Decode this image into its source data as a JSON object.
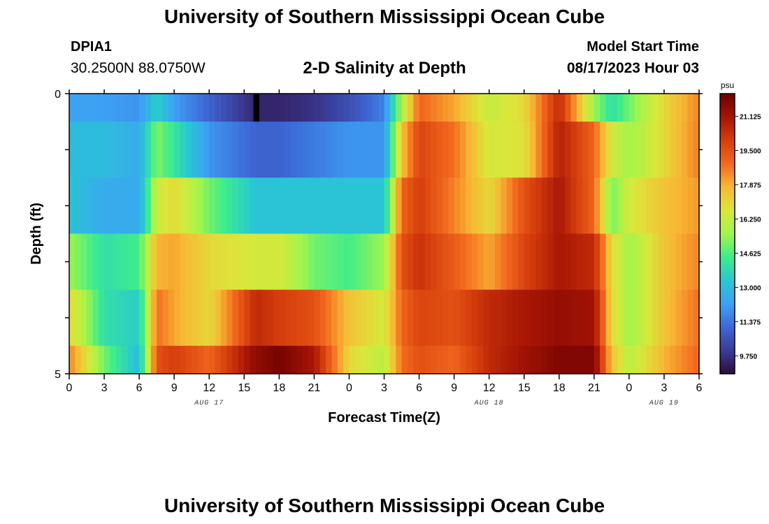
{
  "header": {
    "title": "University of Southern Mississippi Ocean Cube",
    "station_id": "DPIA1",
    "coordinates": "30.2500N  88.0750W",
    "subtitle": "2-D Salinity at Depth",
    "model_start_label": "Model Start Time",
    "model_start_value": "08/17/2023 Hour 03"
  },
  "footer": {
    "title": "University of Southern Mississippi Ocean Cube"
  },
  "chart_data": {
    "type": "heatmap",
    "title": "2-D Salinity at Depth",
    "xlabel": "Forecast Time(Z)",
    "ylabel": "Depth (ft)",
    "x_range": [
      0,
      54
    ],
    "y_range": [
      0,
      5
    ],
    "x_ticks": [
      0,
      3,
      6,
      9,
      12,
      15,
      18,
      21,
      24,
      27,
      30,
      33,
      36,
      39,
      42,
      45,
      48,
      51,
      54
    ],
    "x_tick_labels": [
      "0",
      "3",
      "6",
      "9",
      "12",
      "15",
      "18",
      "21",
      "0",
      "3",
      "6",
      "9",
      "12",
      "15",
      "18",
      "21",
      "0",
      "3",
      "6"
    ],
    "y_ticks": [
      0,
      1,
      2,
      3,
      4,
      5
    ],
    "y_tick_labels": [
      "0",
      "",
      "",
      "",
      "",
      "5"
    ],
    "date_labels": [
      {
        "hour": 12,
        "label": "AUG 17"
      },
      {
        "hour": 36,
        "label": "AUG 18"
      },
      {
        "hour": 51,
        "label": "AUG 19"
      }
    ],
    "depth_layers": [
      0,
      1,
      2,
      3,
      4
    ],
    "key_hours": [
      0,
      3,
      6,
      7.5,
      9,
      12,
      16,
      18,
      21,
      24,
      27,
      28.5,
      30,
      33,
      36,
      39,
      42,
      45,
      46.5,
      48,
      51,
      54
    ],
    "salinity_psu": [
      [
        12.3,
        12.2,
        12.0,
        13.6,
        12.2,
        11.0,
        9.5,
        9.5,
        9.8,
        10.5,
        11.6,
        15.8,
        19.0,
        18.0,
        16.2,
        17.0,
        20.5,
        15.5,
        14.0,
        15.0,
        17.0,
        18.5
      ],
      [
        13.0,
        13.0,
        12.5,
        15.2,
        14.2,
        12.0,
        11.0,
        11.0,
        11.5,
        12.0,
        12.0,
        17.5,
        19.8,
        18.8,
        16.5,
        16.8,
        20.8,
        19.0,
        16.5,
        15.5,
        17.0,
        18.6
      ],
      [
        13.2,
        12.5,
        12.5,
        16.3,
        17.0,
        15.0,
        13.2,
        13.2,
        13.2,
        13.2,
        13.2,
        19.0,
        20.0,
        18.5,
        17.0,
        19.5,
        21.0,
        19.0,
        15.0,
        16.5,
        17.5,
        18.2
      ],
      [
        15.5,
        14.0,
        14.5,
        17.8,
        18.0,
        17.0,
        16.5,
        16.5,
        15.0,
        14.5,
        15.5,
        19.5,
        20.3,
        19.2,
        18.0,
        19.8,
        21.0,
        20.5,
        17.0,
        15.5,
        17.5,
        18.5
      ],
      [
        17.0,
        14.0,
        13.5,
        18.8,
        18.0,
        17.0,
        20.5,
        20.0,
        19.5,
        17.5,
        16.5,
        19.0,
        19.8,
        19.5,
        20.5,
        21.0,
        21.4,
        21.2,
        17.0,
        15.5,
        17.5,
        18.8
      ],
      [
        18.5,
        15.0,
        13.0,
        19.5,
        20.0,
        19.0,
        21.5,
        22.0,
        21.0,
        17.0,
        16.0,
        18.8,
        19.5,
        19.0,
        20.5,
        21.2,
        21.8,
        21.8,
        17.5,
        16.0,
        17.8,
        19.0
      ]
    ],
    "black_cell": {
      "hour_start": 15.8,
      "hour_end": 16.3,
      "depth_start": 0,
      "depth_end": 0.5
    },
    "colorbar": {
      "unit": "psu",
      "min": 8.9,
      "max": 22.2,
      "ticks": [
        21.125,
        19.5,
        17.875,
        16.25,
        14.625,
        13.0,
        11.375,
        9.75
      ],
      "tick_labels": [
        "21.125",
        "19.500",
        "17.875",
        "16.250",
        "14.625",
        "13.000",
        "11.375",
        "9.750"
      ]
    },
    "palette": [
      "#2a0e3a",
      "#3b3b96",
      "#3d68d6",
      "#3da1f4",
      "#28c8d2",
      "#3dec8d",
      "#a4f54a",
      "#dbe63a",
      "#f7b834",
      "#f3691f",
      "#d53e0c",
      "#a51405",
      "#6c0000"
    ]
  }
}
